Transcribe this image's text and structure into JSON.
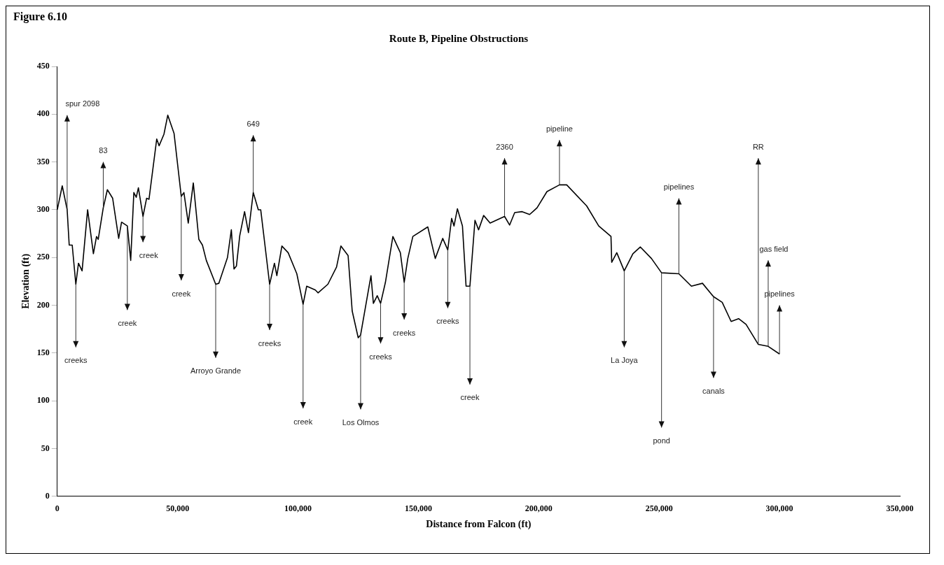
{
  "chart_data": {
    "type": "line",
    "title": "Route B, Pipeline Obstructions",
    "xlabel": "Distance from Falcon (ft)",
    "ylabel": "Elevation (ft)",
    "x": [
      0,
      2060,
      4100,
      4950,
      6200,
      7700,
      8800,
      10300,
      12600,
      15000,
      16300,
      17000,
      19100,
      20800,
      23000,
      25500,
      26700,
      29100,
      30500,
      31800,
      32800,
      33700,
      35600,
      37100,
      38100,
      41300,
      42300,
      44300,
      45900,
      48500,
      51500,
      52600,
      54400,
      56500,
      58800,
      60300,
      61900,
      65800,
      67100,
      70700,
      72300,
      73400,
      74400,
      75800,
      77800,
      79400,
      81400,
      83500,
      84500,
      88200,
      90200,
      91200,
      93300,
      95900,
      99500,
      102100,
      103600,
      107200,
      108300,
      112400,
      116000,
      117800,
      120800,
      122500,
      125000,
      126000,
      130300,
      131300,
      132900,
      134300,
      136300,
      139400,
      142500,
      144100,
      145600,
      147700,
      153900,
      157000,
      160100,
      162200,
      163800,
      164800,
      166200,
      168300,
      169800,
      171400,
      173500,
      175000,
      177100,
      179800,
      185800,
      187900,
      190000,
      193100,
      196200,
      199300,
      203400,
      208600,
      211600,
      219900,
      224900,
      230000,
      230300,
      232400,
      235500,
      239100,
      242200,
      246800,
      251000,
      258200,
      263400,
      268000,
      272600,
      276200,
      279900,
      283000,
      286100,
      291200,
      295300,
      300000
    ],
    "series": [
      {
        "color": "#000000",
        "values": [
          300,
          325,
          300,
          263,
          263,
          222,
          244,
          236,
          300,
          254,
          272,
          269,
          302,
          321,
          312,
          270,
          287,
          283,
          247,
          318,
          313,
          323,
          293,
          312,
          311,
          374,
          367,
          379,
          399,
          380,
          314,
          318,
          286,
          328,
          269,
          263,
          247,
          222,
          223,
          250,
          279,
          238,
          241,
          273,
          298,
          276,
          318,
          300,
          300,
          222,
          244,
          231,
          262,
          255,
          233,
          201,
          220,
          216,
          213,
          222,
          240,
          262,
          252,
          194,
          166,
          169,
          231,
          202,
          210,
          202,
          224,
          272,
          255,
          224,
          249,
          272,
          282,
          249,
          270,
          258,
          291,
          283,
          301,
          283,
          220,
          220,
          289,
          279,
          294,
          286,
          293,
          284,
          297,
          298,
          295,
          302,
          319,
          326,
          326,
          304,
          283,
          272,
          245,
          255,
          236,
          254,
          261,
          249,
          234,
          233,
          220,
          223,
          209,
          203,
          183,
          186,
          180,
          159,
          157,
          149
        ]
      }
    ],
    "xlim": [
      0,
      350000
    ],
    "xticks": [
      0,
      {
        "value": 50000,
        "label": "50,000"
      },
      {
        "value": 100000,
        "label": "100,000"
      },
      {
        "value": 150000,
        "label": "150,000"
      },
      {
        "value": 200000,
        "label": "200,000"
      },
      {
        "value": 250000,
        "label": "250,000"
      },
      {
        "value": 300000,
        "label": "300,000"
      },
      {
        "value": 350000,
        "label": "350,000"
      }
    ],
    "ylim": [
      0,
      450
    ],
    "yticks": [
      0,
      50,
      100,
      150,
      200,
      250,
      300,
      350,
      400,
      450
    ],
    "grid": false,
    "legend": false,
    "marker": "none",
    "line_style": "solid",
    "annotations": [
      "Figure 6.10",
      {
        "text": "spur 2098",
        "x": 4100,
        "y": 300
      },
      {
        "text": "83",
        "x": 19100,
        "y": 302
      },
      {
        "text": "creeks",
        "x": 7700,
        "y": 222
      },
      {
        "text": "creek",
        "x": 29100,
        "y": 283
      },
      {
        "text": "creek",
        "x": 35600,
        "y": 293
      },
      {
        "text": "creek",
        "x": 51500,
        "y": 314
      },
      {
        "text": "Arroyo Grande",
        "x": 65800,
        "y": 222
      },
      {
        "text": "649",
        "x": 81400,
        "y": 318
      },
      {
        "text": "creeks",
        "x": 88200,
        "y": 222
      },
      {
        "text": "creek",
        "x": 102100,
        "y": 201
      },
      {
        "text": "Los Olmos",
        "x": 126000,
        "y": 169
      },
      {
        "text": "creeks",
        "x": 134300,
        "y": 202
      },
      {
        "text": "creeks",
        "x": 144100,
        "y": 224
      },
      {
        "text": "creeks",
        "x": 162200,
        "y": 258
      },
      {
        "text": "creek",
        "x": 171400,
        "y": 220
      },
      {
        "text": "2360",
        "x": 185800,
        "y": 293
      },
      {
        "text": "pipeline",
        "x": 208600,
        "y": 326
      },
      {
        "text": "La Joya",
        "x": 235500,
        "y": 236
      },
      {
        "text": "pond",
        "x": 251000,
        "y": 234
      },
      {
        "text": "pipelines",
        "x": 258200,
        "y": 233
      },
      {
        "text": "canals",
        "x": 272600,
        "y": 209
      },
      {
        "text": "RR",
        "x": 291200,
        "y": 159
      },
      {
        "text": "gas field",
        "x": 295300,
        "y": 157
      },
      {
        "text": "pipelines",
        "x": 300000,
        "y": 149
      }
    ]
  }
}
